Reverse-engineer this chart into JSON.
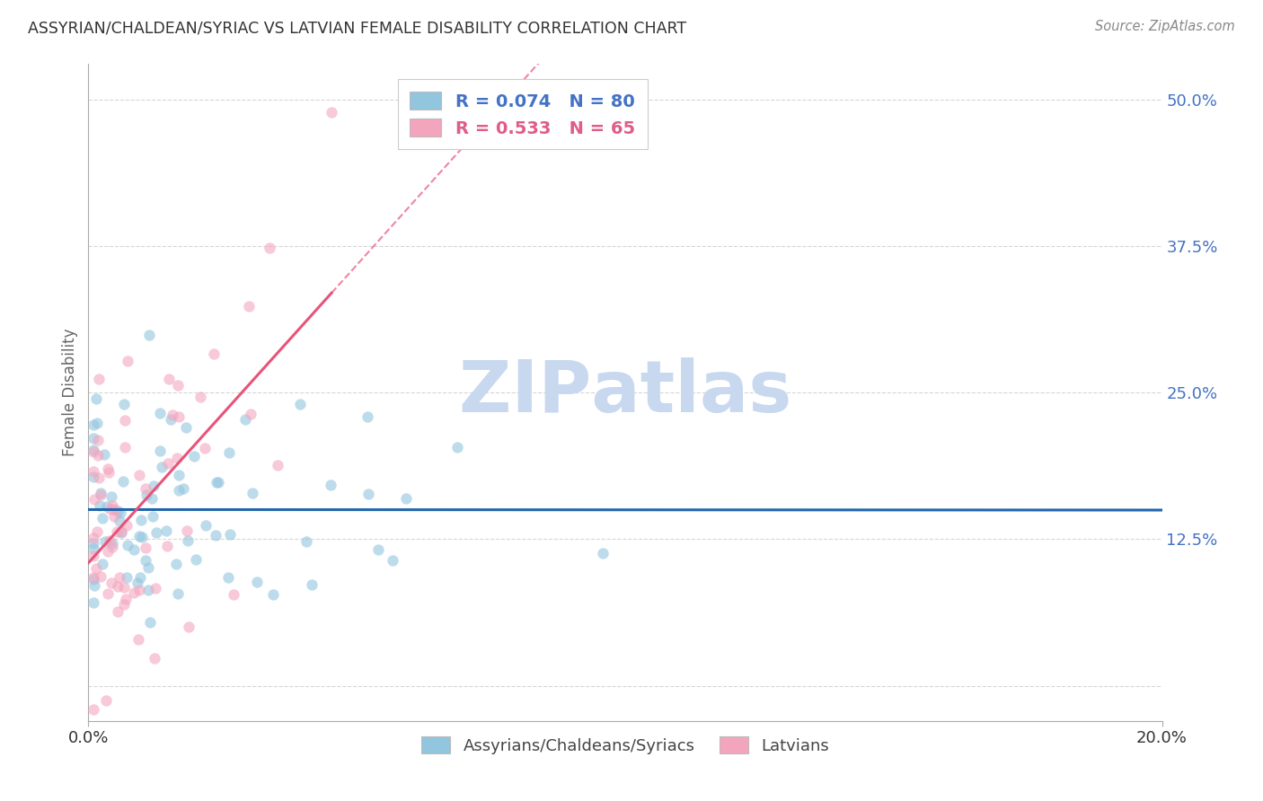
{
  "title": "ASSYRIAN/CHALDEAN/SYRIAC VS LATVIAN FEMALE DISABILITY CORRELATION CHART",
  "source": "Source: ZipAtlas.com",
  "ylabel": "Female Disability",
  "yticks": [
    0.0,
    0.125,
    0.25,
    0.375,
    0.5
  ],
  "ytick_labels": [
    "",
    "12.5%",
    "25.0%",
    "37.5%",
    "50.0%"
  ],
  "xlim": [
    0.0,
    0.2
  ],
  "ylim": [
    -0.03,
    0.53
  ],
  "legend_blue_R": "0.074",
  "legend_blue_N": "80",
  "legend_pink_R": "0.533",
  "legend_pink_N": "65",
  "blue_scatter_color": "#92c5de",
  "pink_scatter_color": "#f4a5be",
  "blue_line_color": "#2166ac",
  "pink_line_color": "#e8537a",
  "blue_legend_color": "#4472c4",
  "pink_legend_color": "#e05c8a",
  "watermark_color": "#c8d8ef",
  "background_color": "#ffffff",
  "grid_color": "#cccccc",
  "blue_seed": 12,
  "pink_seed": 77
}
